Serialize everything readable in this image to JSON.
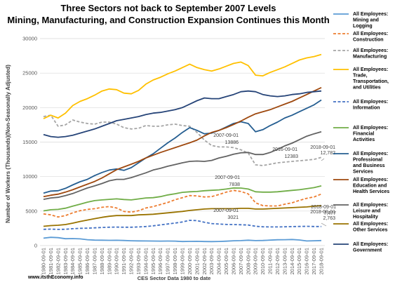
{
  "chart_data": {
    "type": "line",
    "title_lines": [
      "Three Sectors not back to September 2007 Levels",
      "Mining, Manufacturing, and Construction Expansion Continues this Month"
    ],
    "ylabel": "Number of Workers (Thousands)(Non-Seasonally Adjusted)",
    "xlabel": "CES Sector Data 1980 to date",
    "source": "www.itsthEconomy.info",
    "ylim": [
      0,
      30000
    ],
    "y_ticks": [
      "0",
      "5000",
      "10000",
      "15000",
      "20000",
      "25000",
      "30000"
    ],
    "y_tick_values": [
      0,
      5000,
      10000,
      15000,
      20000,
      25000,
      30000
    ],
    "grid": true,
    "legend_position": "right",
    "x": [
      "1980-09-01",
      "1981-09-01",
      "1982-09-01",
      "1983-09-01",
      "1984-09-01",
      "1985-09-01",
      "1986-09-01",
      "1987-09-01",
      "1988-09-01",
      "1989-09-01",
      "1990-09-01",
      "1991-09-01",
      "1992-09-01",
      "1993-09-01",
      "1994-09-01",
      "1995-09-01",
      "1996-09-01",
      "1997-09-01",
      "1998-09-01",
      "1999-09-01",
      "2000-09-01",
      "2001-09-01",
      "2002-09-01",
      "2003-09-01",
      "2004-09-01",
      "2005-09-01",
      "2006-09-01",
      "2007-09-01",
      "2008-09-01",
      "2009-09-01",
      "2010-09-01",
      "2011-09-01",
      "2012-09-01",
      "2013-09-01",
      "2014-09-01",
      "2015-09-01",
      "2016-09-01",
      "2017-09-01",
      "2018-09-01"
    ],
    "series": [
      {
        "name": "All Employees: Mining and Logging",
        "color": "#5b9bd5",
        "dash": "solid",
        "values": [
          1080,
          1200,
          1150,
          1000,
          1020,
          980,
          850,
          790,
          780,
          760,
          770,
          740,
          700,
          680,
          670,
          660,
          650,
          660,
          650,
          590,
          610,
          620,
          590,
          580,
          600,
          640,
          700,
          720,
          780,
          720,
          740,
          790,
          840,
          850,
          880,
          810,
          670,
          700,
          730
        ]
      },
      {
        "name": "All Employees: Construction",
        "color": "#ed7d31",
        "dash": "dash",
        "values": [
          4600,
          4450,
          4150,
          4350,
          4750,
          5050,
          5250,
          5350,
          5550,
          5650,
          5450,
          4950,
          4850,
          5050,
          5450,
          5650,
          5950,
          6250,
          6650,
          6950,
          7250,
          7200,
          7050,
          7100,
          7400,
          7750,
          8000,
          7838,
          7500,
          6200,
          5800,
          5750,
          5750,
          6000,
          6200,
          6550,
          6850,
          7050,
          7477
        ]
      },
      {
        "name": "All Employees: Manufacturing",
        "color": "#a5a5a5",
        "dash": "dash",
        "values": [
          18700,
          18900,
          17300,
          17500,
          18200,
          17900,
          17700,
          17600,
          17900,
          17900,
          17600,
          17100,
          16900,
          17000,
          17400,
          17300,
          17300,
          17500,
          17600,
          17400,
          17300,
          16400,
          15300,
          14500,
          14300,
          14300,
          14200,
          13886,
          13400,
          11700,
          11600,
          11800,
          12000,
          12100,
          12200,
          12300,
          12383,
          12500,
          12782
        ]
      },
      {
        "name": "All Employees: Trade, Transportation, and Utilities",
        "color": "#ffc000",
        "dash": "solid",
        "values": [
          18400,
          18900,
          18500,
          19200,
          20300,
          20900,
          21300,
          21800,
          22400,
          22700,
          22600,
          22100,
          22000,
          22500,
          23400,
          24000,
          24400,
          24900,
          25300,
          25800,
          26300,
          25800,
          25500,
          25300,
          25600,
          26000,
          26400,
          26600,
          26100,
          24700,
          24600,
          25100,
          25500,
          25900,
          26400,
          26900,
          27200,
          27400,
          27700
        ]
      },
      {
        "name": "All Employees: Information",
        "color": "#4472c4",
        "dash": "dash",
        "values": [
          2360,
          2390,
          2350,
          2370,
          2450,
          2500,
          2520,
          2570,
          2620,
          2660,
          2680,
          2660,
          2660,
          2700,
          2770,
          2870,
          3000,
          3130,
          3260,
          3430,
          3660,
          3620,
          3390,
          3190,
          3120,
          3070,
          3050,
          3021,
          2980,
          2810,
          2730,
          2710,
          2710,
          2730,
          2760,
          2780,
          2800,
          2770,
          2763
        ]
      },
      {
        "name": "All Employees: Financial Activities",
        "color": "#70ad47",
        "dash": "solid",
        "values": [
          5030,
          5200,
          5250,
          5420,
          5720,
          6000,
          6300,
          6520,
          6620,
          6700,
          6770,
          6680,
          6620,
          6760,
          6910,
          6950,
          7100,
          7340,
          7520,
          7720,
          7800,
          7840,
          7950,
          8010,
          8070,
          8200,
          8350,
          8340,
          8200,
          7800,
          7750,
          7750,
          7800,
          7900,
          8000,
          8100,
          8250,
          8400,
          8650
        ]
      },
      {
        "name": "All Employees: Professional and Business Services",
        "color": "#255e91",
        "dash": "solid",
        "values": [
          7600,
          7900,
          7950,
          8300,
          8800,
          9250,
          9600,
          10150,
          10600,
          10950,
          11100,
          10900,
          11300,
          12000,
          12700,
          13300,
          14100,
          14900,
          15600,
          16400,
          17100,
          16700,
          16200,
          16300,
          16700,
          17200,
          17700,
          17950,
          17700,
          16500,
          16800,
          17400,
          17900,
          18500,
          18900,
          19400,
          19900,
          20400,
          21100
        ]
      },
      {
        "name": "All Employees: Education and Health Services",
        "color": "#9e480e",
        "dash": "solid",
        "values": [
          7100,
          7300,
          7450,
          7750,
          8100,
          8500,
          8900,
          9300,
          9800,
          10400,
          11000,
          11400,
          11800,
          12200,
          12700,
          13100,
          13500,
          13850,
          14200,
          14550,
          14900,
          15300,
          15900,
          16400,
          16700,
          17100,
          17550,
          18050,
          18600,
          19100,
          19400,
          19700,
          20100,
          20500,
          20900,
          21400,
          21900,
          22400,
          22900
        ]
      },
      {
        "name": "All Employees: Leisure and Hospitality",
        "color": "#636363",
        "dash": "solid",
        "values": [
          6700,
          6900,
          7000,
          7250,
          7550,
          7950,
          8350,
          8650,
          9000,
          9400,
          9600,
          9600,
          9850,
          10200,
          10550,
          10950,
          11200,
          11500,
          11750,
          12000,
          12200,
          12250,
          12200,
          12350,
          12700,
          12950,
          13250,
          13450,
          13500,
          13200,
          13200,
          13500,
          13950,
          14450,
          14850,
          15350,
          15850,
          16200,
          16500
        ]
      },
      {
        "name": "All Employees: Other Services",
        "color": "#997300",
        "dash": "solid",
        "values": [
          2800,
          2900,
          2950,
          3050,
          3250,
          3500,
          3700,
          3900,
          4100,
          4250,
          4350,
          4350,
          4350,
          4450,
          4500,
          4550,
          4650,
          4750,
          4850,
          4950,
          5100,
          5200,
          5300,
          5350,
          5350,
          5350,
          5350,
          5400,
          5400,
          5300,
          5300,
          5350,
          5400,
          5450,
          5500,
          5550,
          5600,
          5700,
          5800
        ]
      },
      {
        "name": "All Employees: Government",
        "color": "#264478",
        "dash": "solid",
        "values": [
          16100,
          15800,
          15700,
          15800,
          16000,
          16300,
          16600,
          16900,
          17300,
          17700,
          18100,
          18300,
          18500,
          18700,
          19000,
          19200,
          19300,
          19500,
          19700,
          20000,
          20500,
          21000,
          21400,
          21300,
          21300,
          21600,
          21900,
          22300,
          22400,
          22300,
          21900,
          21700,
          21600,
          21700,
          21900,
          22000,
          22200,
          22300,
          22400
        ]
      }
    ],
    "annotations": [
      {
        "date": "2007-09-01",
        "value": "13886"
      },
      {
        "date": "2016-09-01",
        "value": "12383"
      },
      {
        "date": "2018-09-01",
        "value": "12,782"
      },
      {
        "date": "2007-09-01",
        "value": "7838"
      },
      {
        "date": "2018-09-01",
        "value": "7,477"
      },
      {
        "date": "2007-09-01",
        "value": "3021"
      },
      {
        "date": "2018-09-01",
        "value": "2,763"
      }
    ]
  }
}
